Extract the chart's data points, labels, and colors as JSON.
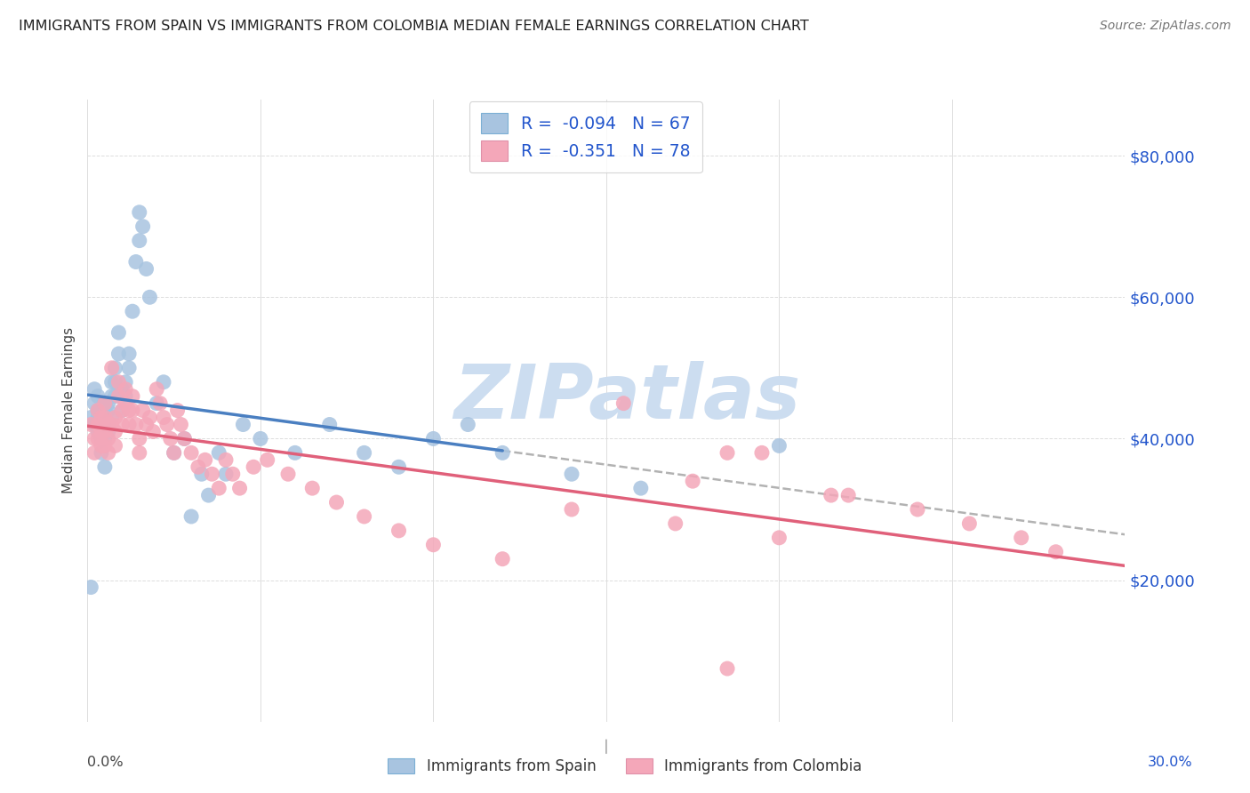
{
  "title": "IMMIGRANTS FROM SPAIN VS IMMIGRANTS FROM COLOMBIA MEDIAN FEMALE EARNINGS CORRELATION CHART",
  "source": "Source: ZipAtlas.com",
  "ylabel": "Median Female Earnings",
  "ytick_values": [
    20000,
    40000,
    60000,
    80000
  ],
  "ytick_labels": [
    "$20,000",
    "$40,000",
    "$60,000",
    "$80,000"
  ],
  "xlim": [
    0.0,
    0.3
  ],
  "ylim": [
    0,
    88000
  ],
  "xtick_values": [
    0.0,
    0.05,
    0.1,
    0.15,
    0.2,
    0.25,
    0.3
  ],
  "legend_R_spain": "-0.094",
  "legend_N_spain": "67",
  "legend_R_colombia": "-0.351",
  "legend_N_colombia": "78",
  "color_spain_scatter": "#a8c4e0",
  "color_colombia_scatter": "#f4a7b9",
  "color_spain_line": "#4a7fc1",
  "color_colombia_line": "#e0607a",
  "color_dashed": "#aaaaaa",
  "color_label_blue": "#2255cc",
  "watermark": "ZIPatlas",
  "watermark_color": "#ccddf0",
  "background": "#ffffff",
  "grid_color": "#dddddd",
  "title_color": "#222222",
  "source_color": "#777777",
  "axis_label_color": "#444444",
  "spain_x": [
    0.001,
    0.001,
    0.002,
    0.002,
    0.002,
    0.003,
    0.003,
    0.003,
    0.003,
    0.003,
    0.004,
    0.004,
    0.004,
    0.004,
    0.004,
    0.005,
    0.005,
    0.005,
    0.005,
    0.005,
    0.005,
    0.006,
    0.006,
    0.006,
    0.006,
    0.007,
    0.007,
    0.007,
    0.008,
    0.008,
    0.008,
    0.009,
    0.009,
    0.01,
    0.01,
    0.011,
    0.011,
    0.012,
    0.012,
    0.013,
    0.014,
    0.015,
    0.015,
    0.016,
    0.017,
    0.018,
    0.02,
    0.022,
    0.025,
    0.028,
    0.03,
    0.033,
    0.035,
    0.038,
    0.04,
    0.045,
    0.05,
    0.06,
    0.07,
    0.08,
    0.09,
    0.1,
    0.11,
    0.12,
    0.14,
    0.16,
    0.2
  ],
  "spain_y": [
    19000,
    43000,
    47000,
    45000,
    42000,
    44000,
    43000,
    42000,
    46000,
    41000,
    44000,
    43000,
    41000,
    40000,
    38000,
    45000,
    44000,
    43000,
    42000,
    40000,
    36000,
    45000,
    44000,
    42000,
    41000,
    48000,
    46000,
    43000,
    50000,
    48000,
    46000,
    55000,
    52000,
    47000,
    44000,
    48000,
    46000,
    52000,
    50000,
    58000,
    65000,
    72000,
    68000,
    70000,
    64000,
    60000,
    45000,
    48000,
    38000,
    40000,
    29000,
    35000,
    32000,
    38000,
    35000,
    42000,
    40000,
    38000,
    42000,
    38000,
    36000,
    40000,
    42000,
    38000,
    35000,
    33000,
    39000
  ],
  "colombia_x": [
    0.001,
    0.002,
    0.002,
    0.003,
    0.003,
    0.003,
    0.004,
    0.004,
    0.004,
    0.005,
    0.005,
    0.005,
    0.005,
    0.006,
    0.006,
    0.006,
    0.007,
    0.007,
    0.008,
    0.008,
    0.008,
    0.009,
    0.009,
    0.01,
    0.01,
    0.011,
    0.011,
    0.012,
    0.012,
    0.013,
    0.013,
    0.014,
    0.015,
    0.015,
    0.016,
    0.017,
    0.018,
    0.019,
    0.02,
    0.021,
    0.022,
    0.023,
    0.024,
    0.025,
    0.026,
    0.027,
    0.028,
    0.03,
    0.032,
    0.034,
    0.036,
    0.038,
    0.04,
    0.042,
    0.044,
    0.048,
    0.052,
    0.058,
    0.065,
    0.072,
    0.08,
    0.09,
    0.1,
    0.12,
    0.14,
    0.155,
    0.17,
    0.2,
    0.22,
    0.24,
    0.255,
    0.27,
    0.28,
    0.175,
    0.195,
    0.215,
    0.185,
    0.185
  ],
  "colombia_y": [
    42000,
    40000,
    38000,
    44000,
    42000,
    40000,
    43000,
    41000,
    39000,
    45000,
    43000,
    41000,
    39000,
    42000,
    40000,
    38000,
    50000,
    42000,
    43000,
    41000,
    39000,
    48000,
    46000,
    44000,
    42000,
    47000,
    45000,
    44000,
    42000,
    46000,
    44000,
    42000,
    40000,
    38000,
    44000,
    42000,
    43000,
    41000,
    47000,
    45000,
    43000,
    42000,
    40000,
    38000,
    44000,
    42000,
    40000,
    38000,
    36000,
    37000,
    35000,
    33000,
    37000,
    35000,
    33000,
    36000,
    37000,
    35000,
    33000,
    31000,
    29000,
    27000,
    25000,
    23000,
    30000,
    45000,
    28000,
    26000,
    32000,
    30000,
    28000,
    26000,
    24000,
    34000,
    38000,
    32000,
    38000,
    7500
  ]
}
